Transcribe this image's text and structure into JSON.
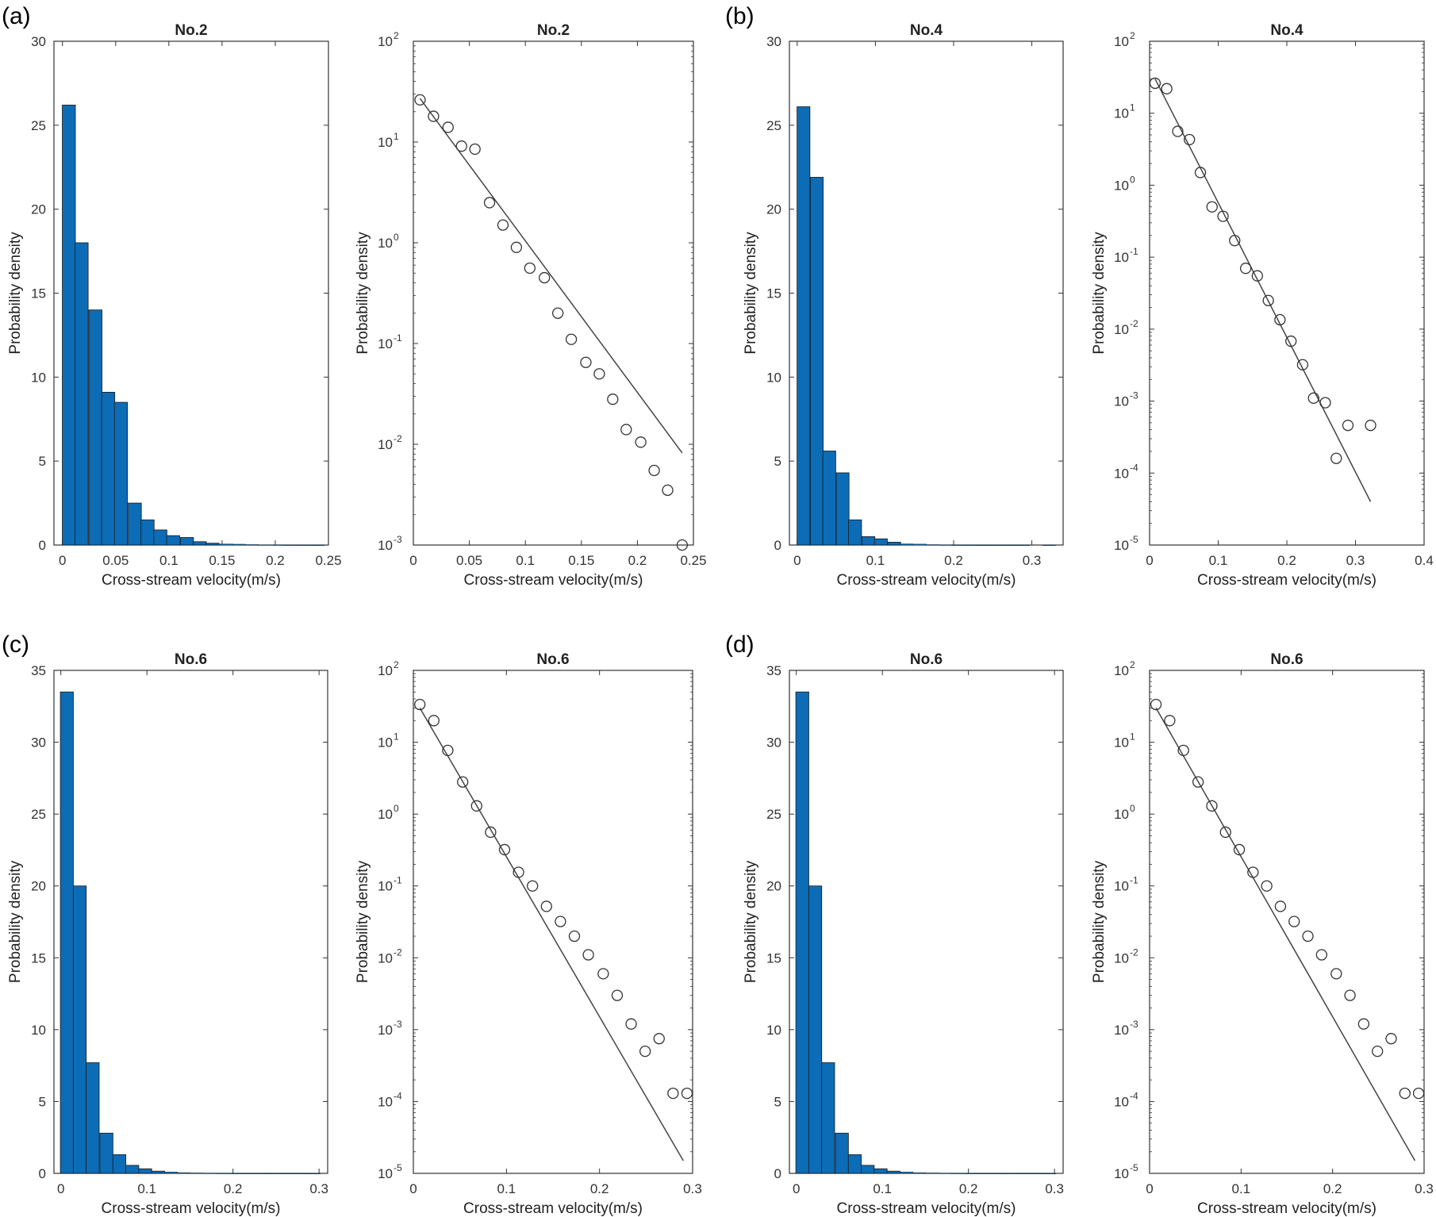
{
  "colors": {
    "bar_fill": "#0C6CB6",
    "bar_edge": "#1a1a1a",
    "axis": "#333333",
    "marker": "#333333",
    "line": "#444444"
  },
  "panel_labels": [
    "(a)",
    "(b)",
    "(c)",
    "(d)"
  ],
  "chart_data": [
    {
      "type": "bar",
      "panel": "(a)",
      "title": "No.2",
      "xlabel": "Cross-stream velocity(m/s)",
      "ylabel": "Probability density",
      "xlim": [
        -0.008,
        0.25
      ],
      "ylim": [
        0,
        30
      ],
      "xticks": [
        0,
        0.05,
        0.1,
        0.15,
        0.2,
        0.25
      ],
      "xticklabels": [
        "0",
        "0.05",
        "0.1",
        "0.15",
        "0.2",
        "0.25"
      ],
      "yticks": [
        0,
        5,
        10,
        15,
        20,
        25,
        30
      ],
      "yticklabels": [
        "0",
        "5",
        "10",
        "15",
        "20",
        "25",
        "30"
      ],
      "bin_width": 0.0123,
      "x": [
        0.006,
        0.018,
        0.031,
        0.043,
        0.055,
        0.068,
        0.08,
        0.092,
        0.104,
        0.117,
        0.129,
        0.141,
        0.154,
        0.166,
        0.178,
        0.19,
        0.203,
        0.215,
        0.227,
        0.24
      ],
      "values": [
        26.2,
        18.0,
        14.0,
        9.1,
        8.5,
        2.5,
        1.5,
        0.9,
        0.56,
        0.45,
        0.2,
        0.11,
        0.065,
        0.05,
        0.028,
        0.014,
        0.0105,
        0.0055,
        0.0035,
        0.001
      ]
    },
    {
      "type": "scatter",
      "panel": "(a)",
      "title": "No.2",
      "yscale": "log",
      "xlabel": "Cross-stream velocity(m/s)",
      "ylabel": "Probability density",
      "xlim": [
        0,
        0.25
      ],
      "ylim": [
        0.001,
        100
      ],
      "xticks": [
        0,
        0.05,
        0.1,
        0.15,
        0.2,
        0.25
      ],
      "xticklabels": [
        "0",
        "0.05",
        "0.1",
        "0.15",
        "0.2",
        "0.25"
      ],
      "yticks": [
        0.001,
        0.01,
        0.1,
        1,
        10,
        100
      ],
      "yticklabels": [
        {
          "base": "10",
          "exp": "-3"
        },
        {
          "base": "10",
          "exp": "-2"
        },
        {
          "base": "10",
          "exp": "-1"
        },
        {
          "base": "10",
          "exp": "0"
        },
        {
          "base": "10",
          "exp": "1"
        },
        {
          "base": "10",
          "exp": "2"
        }
      ],
      "x": [
        0.006,
        0.018,
        0.031,
        0.043,
        0.055,
        0.068,
        0.08,
        0.092,
        0.104,
        0.117,
        0.129,
        0.141,
        0.154,
        0.166,
        0.178,
        0.19,
        0.203,
        0.215,
        0.227,
        0.24
      ],
      "y": [
        26.2,
        18.0,
        14.0,
        9.1,
        8.5,
        2.5,
        1.5,
        0.9,
        0.56,
        0.45,
        0.2,
        0.11,
        0.065,
        0.05,
        0.028,
        0.014,
        0.0105,
        0.0055,
        0.0035,
        0.001
      ],
      "fit_line": {
        "x": [
          0.006,
          0.24
        ],
        "y": [
          27,
          0.0082
        ]
      }
    },
    {
      "type": "bar",
      "panel": "(b)",
      "title": "No.4",
      "xlabel": "Cross-stream velocity(m/s)",
      "ylabel": "Probability density",
      "xlim": [
        -0.01,
        0.34
      ],
      "ylim": [
        0,
        30
      ],
      "xticks": [
        0,
        0.1,
        0.2,
        0.3
      ],
      "xticklabels": [
        "0",
        "0.1",
        "0.2",
        "0.3"
      ],
      "yticks": [
        0,
        5,
        10,
        15,
        20,
        25,
        30
      ],
      "yticklabels": [
        "0",
        "5",
        "10",
        "15",
        "20",
        "25",
        "30"
      ],
      "bin_width": 0.0165,
      "x": [
        0.008,
        0.025,
        0.041,
        0.058,
        0.074,
        0.091,
        0.107,
        0.124,
        0.14,
        0.157,
        0.173,
        0.19,
        0.206,
        0.223,
        0.239,
        0.256,
        0.272,
        0.289,
        0.305,
        0.322
      ],
      "values": [
        26.1,
        21.9,
        5.6,
        4.3,
        1.5,
        0.5,
        0.37,
        0.17,
        0.07,
        0.055,
        0.025,
        0.0135,
        0.0068,
        0.0032,
        0.0011,
        0.00095,
        0.00016,
        0.00046,
        0,
        0.00046
      ]
    },
    {
      "type": "scatter",
      "panel": "(b)",
      "title": "No.4",
      "yscale": "log",
      "xlabel": "Cross-stream velocity(m/s)",
      "ylabel": "Probability density",
      "xlim": [
        0,
        0.4
      ],
      "ylim": [
        1e-05,
        100
      ],
      "xticks": [
        0,
        0.1,
        0.2,
        0.3,
        0.4
      ],
      "xticklabels": [
        "0",
        "0.1",
        "0.2",
        "0.3",
        "0.4"
      ],
      "yticks": [
        1e-05,
        0.0001,
        0.001,
        0.01,
        0.1,
        1,
        10,
        100
      ],
      "yticklabels": [
        {
          "base": "10",
          "exp": "-5"
        },
        {
          "base": "10",
          "exp": "-4"
        },
        {
          "base": "10",
          "exp": "-3"
        },
        {
          "base": "10",
          "exp": "-2"
        },
        {
          "base": "10",
          "exp": "-1"
        },
        {
          "base": "10",
          "exp": "0"
        },
        {
          "base": "10",
          "exp": "1"
        },
        {
          "base": "10",
          "exp": "2"
        }
      ],
      "x": [
        0.008,
        0.025,
        0.041,
        0.058,
        0.074,
        0.091,
        0.107,
        0.124,
        0.14,
        0.157,
        0.173,
        0.19,
        0.206,
        0.223,
        0.239,
        0.256,
        0.272,
        0.289,
        0.322
      ],
      "y": [
        26.1,
        21.9,
        5.6,
        4.3,
        1.5,
        0.5,
        0.37,
        0.17,
        0.07,
        0.055,
        0.025,
        0.0135,
        0.0068,
        0.0032,
        0.0011,
        0.00095,
        0.00016,
        0.00046,
        0.00046
      ],
      "fit_line": {
        "x": [
          0.008,
          0.322
        ],
        "y": [
          30,
          4e-05
        ]
      }
    },
    {
      "type": "bar",
      "panel": "(c)",
      "title": "No.6",
      "xlabel": "Cross-stream velocity(m/s)",
      "ylabel": "Probability density",
      "xlim": [
        -0.008,
        0.31
      ],
      "ylim": [
        0,
        35
      ],
      "xticks": [
        0,
        0.1,
        0.2,
        0.3
      ],
      "xticklabels": [
        "0",
        "0.1",
        "0.2",
        "0.3"
      ],
      "yticks": [
        0,
        5,
        10,
        15,
        20,
        25,
        30,
        35
      ],
      "yticklabels": [
        "0",
        "5",
        "10",
        "15",
        "20",
        "25",
        "30",
        "35"
      ],
      "bin_width": 0.0151,
      "x": [
        0.007,
        0.022,
        0.037,
        0.053,
        0.068,
        0.083,
        0.098,
        0.113,
        0.128,
        0.143,
        0.158,
        0.173,
        0.188,
        0.204,
        0.219,
        0.234,
        0.249,
        0.264,
        0.279,
        0.294
      ],
      "values": [
        33.5,
        20.0,
        7.7,
        2.8,
        1.3,
        0.56,
        0.32,
        0.155,
        0.1,
        0.052,
        0.032,
        0.02,
        0.011,
        0.006,
        0.003,
        0.0012,
        0.0005,
        0.00075,
        0.00013,
        0.00013
      ]
    },
    {
      "type": "scatter",
      "panel": "(c)",
      "title": "No.6",
      "yscale": "log",
      "xlabel": "Cross-stream velocity(m/s)",
      "ylabel": "Probability density",
      "xlim": [
        0,
        0.3
      ],
      "ylim": [
        1e-05,
        100
      ],
      "xticks": [
        0,
        0.1,
        0.2,
        0.3
      ],
      "xticklabels": [
        "0",
        "0.1",
        "0.2",
        "0.3"
      ],
      "yticks": [
        1e-05,
        0.0001,
        0.001,
        0.01,
        0.1,
        1,
        10,
        100
      ],
      "yticklabels": [
        {
          "base": "10",
          "exp": "-5"
        },
        {
          "base": "10",
          "exp": "-4"
        },
        {
          "base": "10",
          "exp": "-3"
        },
        {
          "base": "10",
          "exp": "-2"
        },
        {
          "base": "10",
          "exp": "-1"
        },
        {
          "base": "10",
          "exp": "0"
        },
        {
          "base": "10",
          "exp": "1"
        },
        {
          "base": "10",
          "exp": "2"
        }
      ],
      "x": [
        0.007,
        0.022,
        0.037,
        0.053,
        0.068,
        0.083,
        0.098,
        0.113,
        0.128,
        0.143,
        0.158,
        0.173,
        0.188,
        0.204,
        0.219,
        0.234,
        0.249,
        0.264,
        0.279,
        0.294
      ],
      "y": [
        33.5,
        20.0,
        7.7,
        2.8,
        1.3,
        0.56,
        0.32,
        0.155,
        0.1,
        0.052,
        0.032,
        0.02,
        0.011,
        0.006,
        0.003,
        0.0012,
        0.0005,
        0.00075,
        0.00013,
        0.00013
      ],
      "fit_line": {
        "x": [
          0.007,
          0.29
        ],
        "y": [
          30,
          1.5e-05
        ]
      }
    },
    {
      "type": "bar",
      "panel": "(d)",
      "title": "No.6",
      "xlabel": "Cross-stream velocity(m/s)",
      "ylabel": "Probability density",
      "xlim": [
        -0.008,
        0.31
      ],
      "ylim": [
        0,
        35
      ],
      "xticks": [
        0,
        0.1,
        0.2,
        0.3
      ],
      "xticklabels": [
        "0",
        "0.1",
        "0.2",
        "0.3"
      ],
      "yticks": [
        0,
        5,
        10,
        15,
        20,
        25,
        30,
        35
      ],
      "yticklabels": [
        "0",
        "5",
        "10",
        "15",
        "20",
        "25",
        "30",
        "35"
      ],
      "bin_width": 0.0151,
      "x": [
        0.007,
        0.022,
        0.037,
        0.053,
        0.068,
        0.083,
        0.098,
        0.113,
        0.128,
        0.143,
        0.158,
        0.173,
        0.188,
        0.204,
        0.219,
        0.234,
        0.249,
        0.264,
        0.279,
        0.294
      ],
      "values": [
        33.5,
        20.0,
        7.7,
        2.8,
        1.3,
        0.56,
        0.32,
        0.155,
        0.1,
        0.052,
        0.032,
        0.02,
        0.011,
        0.006,
        0.003,
        0.0012,
        0.0005,
        0.00075,
        0.00013,
        0.00013
      ]
    },
    {
      "type": "scatter",
      "panel": "(d)",
      "title": "No.6",
      "yscale": "log",
      "xlabel": "Cross-stream velocity(m/s)",
      "ylabel": "Probability density",
      "xlim": [
        0,
        0.3
      ],
      "ylim": [
        1e-05,
        100
      ],
      "xticks": [
        0,
        0.1,
        0.2,
        0.3
      ],
      "xticklabels": [
        "0",
        "0.1",
        "0.2",
        "0.3"
      ],
      "yticks": [
        1e-05,
        0.0001,
        0.001,
        0.01,
        0.1,
        1,
        10,
        100
      ],
      "yticklabels": [
        {
          "base": "10",
          "exp": "-5"
        },
        {
          "base": "10",
          "exp": "-4"
        },
        {
          "base": "10",
          "exp": "-3"
        },
        {
          "base": "10",
          "exp": "-2"
        },
        {
          "base": "10",
          "exp": "-1"
        },
        {
          "base": "10",
          "exp": "0"
        },
        {
          "base": "10",
          "exp": "1"
        },
        {
          "base": "10",
          "exp": "2"
        }
      ],
      "x": [
        0.007,
        0.022,
        0.037,
        0.053,
        0.068,
        0.083,
        0.098,
        0.113,
        0.128,
        0.143,
        0.158,
        0.173,
        0.188,
        0.204,
        0.219,
        0.234,
        0.249,
        0.264,
        0.279,
        0.294
      ],
      "y": [
        33.5,
        20.0,
        7.7,
        2.8,
        1.3,
        0.56,
        0.32,
        0.155,
        0.1,
        0.052,
        0.032,
        0.02,
        0.011,
        0.006,
        0.003,
        0.0012,
        0.0005,
        0.00075,
        0.00013,
        0.00013
      ],
      "fit_line": {
        "x": [
          0.007,
          0.29
        ],
        "y": [
          30,
          1.5e-05
        ]
      }
    }
  ]
}
